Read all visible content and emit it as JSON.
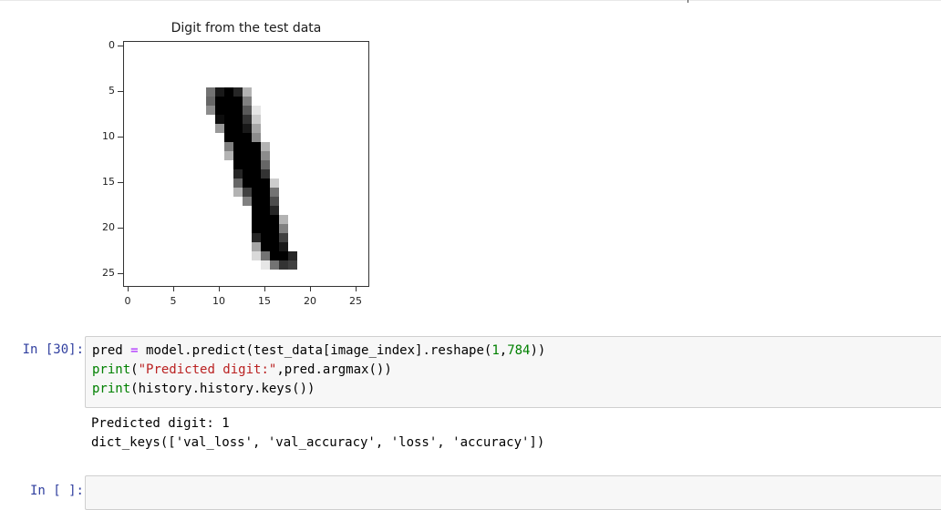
{
  "plot": {
    "title": "Digit from the test data",
    "yticks": [
      "0",
      "5",
      "10",
      "15",
      "20",
      "25"
    ],
    "xticks": [
      "0",
      "5",
      "10",
      "15",
      "20",
      "25"
    ]
  },
  "chart_data": {
    "type": "heatmap",
    "title": "Digit from the test data",
    "colormap": "gray_r",
    "grid_size": [
      27,
      27
    ],
    "xlim": [
      -0.5,
      26.5
    ],
    "ylim": [
      26.5,
      -0.5
    ],
    "xticks": [
      0,
      5,
      10,
      15,
      20,
      25
    ],
    "yticks": [
      0,
      5,
      10,
      15,
      20,
      25
    ],
    "pixels": [
      [
        5,
        9,
        0.55
      ],
      [
        5,
        10,
        0.9
      ],
      [
        5,
        11,
        1.0
      ],
      [
        5,
        12,
        0.85
      ],
      [
        5,
        13,
        0.3
      ],
      [
        6,
        9,
        0.6
      ],
      [
        6,
        10,
        1.0
      ],
      [
        6,
        11,
        1.0
      ],
      [
        6,
        12,
        1.0
      ],
      [
        6,
        13,
        0.5
      ],
      [
        7,
        9,
        0.45
      ],
      [
        7,
        10,
        1.0
      ],
      [
        7,
        11,
        1.0
      ],
      [
        7,
        12,
        1.0
      ],
      [
        7,
        13,
        0.65
      ],
      [
        7,
        14,
        0.1
      ],
      [
        8,
        10,
        0.95
      ],
      [
        8,
        11,
        1.0
      ],
      [
        8,
        12,
        1.0
      ],
      [
        8,
        13,
        0.8
      ],
      [
        8,
        14,
        0.2
      ],
      [
        9,
        10,
        0.4
      ],
      [
        9,
        11,
        1.0
      ],
      [
        9,
        12,
        1.0
      ],
      [
        9,
        13,
        0.9
      ],
      [
        9,
        14,
        0.35
      ],
      [
        10,
        11,
        1.0
      ],
      [
        10,
        12,
        1.0
      ],
      [
        10,
        13,
        1.0
      ],
      [
        10,
        14,
        0.45
      ],
      [
        11,
        11,
        0.5
      ],
      [
        11,
        12,
        1.0
      ],
      [
        11,
        13,
        1.0
      ],
      [
        11,
        14,
        1.0
      ],
      [
        11,
        15,
        0.3
      ],
      [
        12,
        11,
        0.3
      ],
      [
        12,
        12,
        1.0
      ],
      [
        12,
        13,
        1.0
      ],
      [
        12,
        14,
        1.0
      ],
      [
        12,
        15,
        0.45
      ],
      [
        13,
        12,
        1.0
      ],
      [
        13,
        13,
        1.0
      ],
      [
        13,
        14,
        1.0
      ],
      [
        13,
        15,
        0.6
      ],
      [
        14,
        12,
        0.85
      ],
      [
        14,
        13,
        1.0
      ],
      [
        14,
        14,
        1.0
      ],
      [
        14,
        15,
        0.8
      ],
      [
        15,
        12,
        0.6
      ],
      [
        15,
        13,
        1.0
      ],
      [
        15,
        14,
        1.0
      ],
      [
        15,
        15,
        1.0
      ],
      [
        15,
        16,
        0.2
      ],
      [
        16,
        12,
        0.3
      ],
      [
        16,
        13,
        0.75
      ],
      [
        16,
        14,
        1.0
      ],
      [
        16,
        15,
        1.0
      ],
      [
        16,
        16,
        0.55
      ],
      [
        17,
        13,
        0.5
      ],
      [
        17,
        14,
        1.0
      ],
      [
        17,
        15,
        1.0
      ],
      [
        17,
        16,
        0.7
      ],
      [
        18,
        14,
        1.0
      ],
      [
        18,
        15,
        1.0
      ],
      [
        18,
        16,
        0.85
      ],
      [
        19,
        14,
        1.0
      ],
      [
        19,
        15,
        1.0
      ],
      [
        19,
        16,
        1.0
      ],
      [
        19,
        17,
        0.3
      ],
      [
        20,
        14,
        1.0
      ],
      [
        20,
        15,
        1.0
      ],
      [
        20,
        16,
        1.0
      ],
      [
        20,
        17,
        0.5
      ],
      [
        21,
        14,
        0.85
      ],
      [
        21,
        15,
        1.0
      ],
      [
        21,
        16,
        1.0
      ],
      [
        21,
        17,
        0.75
      ],
      [
        22,
        14,
        0.35
      ],
      [
        22,
        15,
        1.0
      ],
      [
        22,
        16,
        1.0
      ],
      [
        22,
        17,
        0.9
      ],
      [
        23,
        14,
        0.15
      ],
      [
        23,
        15,
        0.55
      ],
      [
        23,
        16,
        1.0
      ],
      [
        23,
        17,
        1.0
      ],
      [
        23,
        18,
        0.85
      ],
      [
        24,
        15,
        0.1
      ],
      [
        24,
        16,
        0.55
      ],
      [
        24,
        17,
        0.8
      ],
      [
        24,
        18,
        0.75
      ]
    ]
  },
  "cells": {
    "cell30": {
      "prompt": "In [30]:",
      "line1": {
        "a": "pred ",
        "b": "=",
        "c": " model.predict(test_data[image_index].reshape(",
        "d": "1",
        "e": ",",
        "f": "784",
        "g": "))"
      },
      "line2": {
        "a": "print",
        "b": "(",
        "c": "\"Predicted digit:\"",
        "d": ",pred.argmax())"
      },
      "line3": {
        "a": "print",
        "b": "(history.history.keys())"
      },
      "output": [
        "Predicted digit: 1",
        "dict_keys(['val_loss', 'val_accuracy', 'loss', 'accuracy'])"
      ]
    },
    "empty": {
      "prompt": "In [ ]:"
    }
  }
}
